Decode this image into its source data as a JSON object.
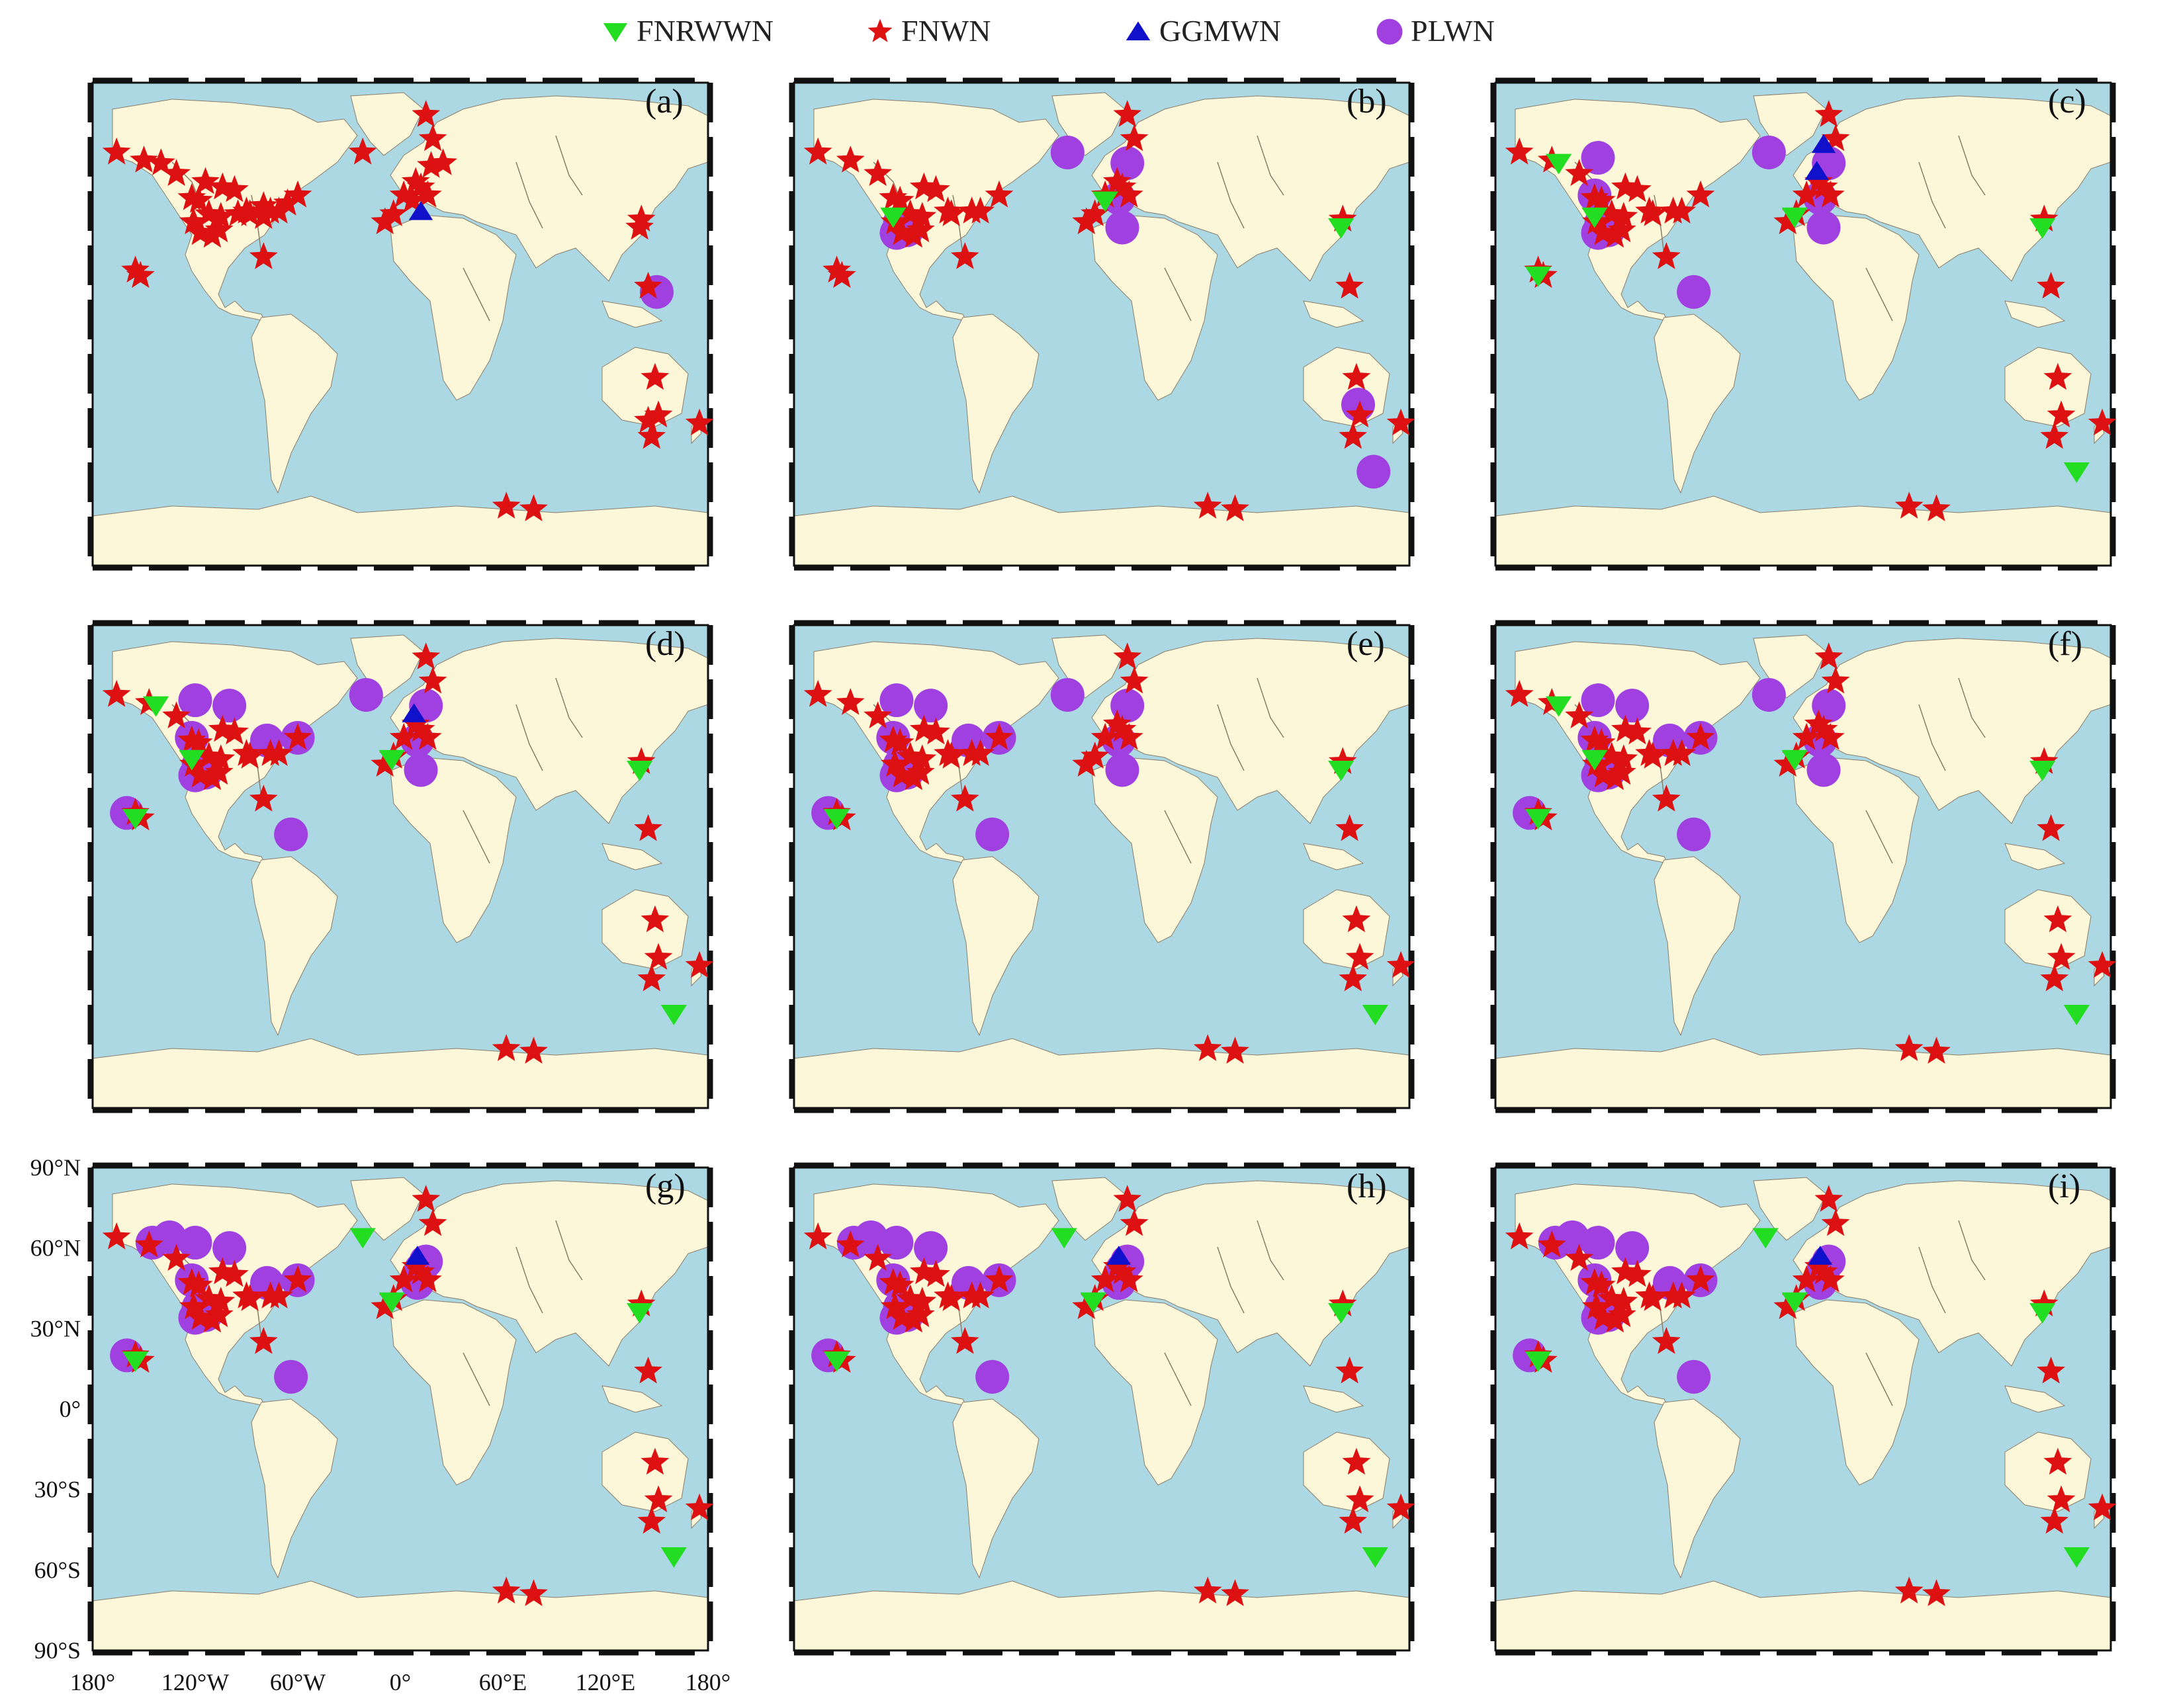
{
  "legend": {
    "items": [
      {
        "label": "FNRWWN",
        "symbol": "triangle-down",
        "color": "#22dd22"
      },
      {
        "label": "FNWN",
        "symbol": "star",
        "color": "#dd1111"
      },
      {
        "label": "GGMWN",
        "symbol": "triangle-up",
        "color": "#1111cc"
      },
      {
        "label": "PLWN",
        "symbol": "circle",
        "color": "#a040e0"
      }
    ]
  },
  "colors": {
    "ocean": "#acd8e4",
    "land": "#fcf7d8",
    "frame": "#111111",
    "river": "#8a7d6a"
  },
  "axes": {
    "lat_labels": [
      "90°N",
      "60°N",
      "30°N",
      "0°",
      "30°S",
      "60°S",
      "90°S"
    ],
    "lat_values": [
      90,
      60,
      30,
      0,
      -30,
      -60,
      -90
    ],
    "lon_labels": [
      "180°",
      "120°W",
      "60°W",
      "0°",
      "60°E",
      "120°E",
      "180°"
    ],
    "lon_values": [
      -180,
      -120,
      -60,
      0,
      60,
      120,
      180
    ]
  },
  "panels": [
    {
      "label": "(a)"
    },
    {
      "label": "(b)"
    },
    {
      "label": "(c)"
    },
    {
      "label": "(d)"
    },
    {
      "label": "(e)"
    },
    {
      "label": "(f)"
    },
    {
      "label": "(g)"
    },
    {
      "label": "(h)"
    },
    {
      "label": "(i)"
    }
  ],
  "site_sets": {
    "fnwn_base": [
      [
        -155,
        20
      ],
      [
        -152,
        18
      ],
      [
        -166,
        64
      ],
      [
        -150,
        61
      ],
      [
        -140,
        60
      ],
      [
        -131,
        56
      ],
      [
        -122,
        47
      ],
      [
        -118,
        46
      ],
      [
        -121,
        38
      ],
      [
        -117,
        34
      ],
      [
        -110,
        33
      ],
      [
        -106,
        35
      ],
      [
        -112,
        41
      ],
      [
        -105,
        40
      ],
      [
        -95,
        41
      ],
      [
        -90,
        42
      ],
      [
        -88,
        41
      ],
      [
        -80,
        40
      ],
      [
        -76,
        42
      ],
      [
        -71,
        42
      ],
      [
        -66,
        45
      ],
      [
        -80,
        25
      ],
      [
        -114,
        53
      ],
      [
        -104,
        51
      ],
      [
        -97,
        50
      ],
      [
        -80,
        44
      ],
      [
        -60,
        48
      ],
      [
        -22,
        64
      ],
      [
        -9,
        38
      ],
      [
        -4,
        41
      ],
      [
        2,
        48
      ],
      [
        7,
        46
      ],
      [
        9,
        53
      ],
      [
        12,
        51
      ],
      [
        16,
        48
      ],
      [
        18,
        59
      ],
      [
        25,
        60
      ],
      [
        15,
        78
      ],
      [
        19,
        69
      ],
      [
        141,
        39
      ],
      [
        140,
        36
      ],
      [
        145,
        14
      ],
      [
        149,
        -20
      ],
      [
        151,
        -34
      ],
      [
        147,
        -42
      ],
      [
        175,
        -37
      ],
      [
        62,
        -68
      ],
      [
        78,
        -69
      ],
      [
        145,
        -36
      ]
    ],
    "fnwn_later": [
      [
        -155,
        20
      ],
      [
        -152,
        18
      ],
      [
        -166,
        64
      ],
      [
        -147,
        61
      ],
      [
        -131,
        56
      ],
      [
        -122,
        47
      ],
      [
        -118,
        46
      ],
      [
        -121,
        38
      ],
      [
        -117,
        34
      ],
      [
        -110,
        33
      ],
      [
        -106,
        35
      ],
      [
        -112,
        41
      ],
      [
        -105,
        40
      ],
      [
        -90,
        42
      ],
      [
        -88,
        41
      ],
      [
        -76,
        42
      ],
      [
        -71,
        42
      ],
      [
        -80,
        25
      ],
      [
        -104,
        51
      ],
      [
        -97,
        50
      ],
      [
        -60,
        48
      ],
      [
        -9,
        38
      ],
      [
        -4,
        41
      ],
      [
        2,
        48
      ],
      [
        9,
        53
      ],
      [
        12,
        51
      ],
      [
        16,
        48
      ],
      [
        15,
        78
      ],
      [
        19,
        69
      ],
      [
        141,
        39
      ],
      [
        145,
        14
      ],
      [
        149,
        -20
      ],
      [
        151,
        -34
      ],
      [
        147,
        -42
      ],
      [
        175,
        -37
      ],
      [
        62,
        -68
      ],
      [
        78,
        -69
      ]
    ],
    "plwn_b": [
      [
        -118,
        38
      ],
      [
        -114,
        35
      ],
      [
        -120,
        34
      ],
      [
        -20,
        64
      ],
      [
        10,
        47
      ],
      [
        15,
        60
      ],
      [
        12,
        36
      ],
      [
        150,
        -30
      ],
      [
        159,
        -55
      ]
    ],
    "plwn_c": [
      [
        -118,
        38
      ],
      [
        -114,
        35
      ],
      [
        -120,
        34
      ],
      [
        -122,
        48
      ],
      [
        -120,
        62
      ],
      [
        -20,
        64
      ],
      [
        10,
        47
      ],
      [
        15,
        60
      ],
      [
        12,
        36
      ],
      [
        -64,
        12
      ]
    ],
    "plwn_def": [
      [
        -118,
        38
      ],
      [
        -114,
        35
      ],
      [
        -120,
        34
      ],
      [
        -122,
        48
      ],
      [
        -120,
        62
      ],
      [
        -100,
        60
      ],
      [
        -78,
        47
      ],
      [
        -60,
        48
      ],
      [
        -20,
        64
      ],
      [
        10,
        47
      ],
      [
        15,
        60
      ],
      [
        12,
        36
      ],
      [
        -64,
        12
      ],
      [
        -160,
        20
      ]
    ],
    "plwn_ghi": [
      [
        -118,
        38
      ],
      [
        -114,
        35
      ],
      [
        -120,
        34
      ],
      [
        -122,
        48
      ],
      [
        -120,
        62
      ],
      [
        -100,
        60
      ],
      [
        -78,
        47
      ],
      [
        -60,
        48
      ],
      [
        -135,
        64
      ],
      [
        -145,
        62
      ],
      [
        10,
        47
      ],
      [
        15,
        55
      ],
      [
        12,
        52
      ],
      [
        -64,
        12
      ],
      [
        -160,
        20
      ]
    ],
    "fnrwwn_b": [
      [
        -122,
        40
      ],
      [
        2,
        46
      ],
      [
        140,
        36
      ]
    ],
    "fnrwwn_c": [
      [
        -122,
        40
      ],
      [
        -143,
        60
      ],
      [
        -155,
        18
      ],
      [
        -5,
        40
      ],
      [
        140,
        36
      ],
      [
        160,
        -55
      ]
    ],
    "fnrwwn_d": [
      [
        -122,
        40
      ],
      [
        -143,
        60
      ],
      [
        -155,
        18
      ],
      [
        -5,
        40
      ],
      [
        140,
        36
      ],
      [
        160,
        -55
      ]
    ],
    "fnrwwn_e": [
      [
        -155,
        18
      ],
      [
        140,
        36
      ],
      [
        160,
        -55
      ]
    ],
    "fnrwwn_ghi": [
      [
        -155,
        18
      ],
      [
        -5,
        40
      ],
      [
        140,
        36
      ],
      [
        160,
        -55
      ],
      [
        -22,
        64
      ]
    ],
    "ggmwn_a": [
      [
        12,
        42
      ]
    ],
    "ggmwn_c": [
      [
        12,
        67
      ],
      [
        8,
        57
      ]
    ],
    "ggmwn_d": [
      [
        8,
        57
      ]
    ],
    "ggmwn_g": [
      [
        10,
        57
      ]
    ]
  },
  "panel_sites": [
    {
      "fnwn": "fnwn_base",
      "plwn": "none",
      "fnrwwn": "none",
      "ggmwn": "ggmwn_a",
      "extra_plwn": [
        [
          150,
          12
        ]
      ]
    },
    {
      "fnwn": "fnwn_later",
      "plwn": "plwn_b",
      "fnrwwn": "fnrwwn_b",
      "ggmwn": "none"
    },
    {
      "fnwn": "fnwn_later",
      "plwn": "plwn_c",
      "fnrwwn": "fnrwwn_c",
      "ggmwn": "ggmwn_c"
    },
    {
      "fnwn": "fnwn_later",
      "plwn": "plwn_def",
      "fnrwwn": "fnrwwn_d",
      "ggmwn": "ggmwn_d"
    },
    {
      "fnwn": "fnwn_later",
      "plwn": "plwn_def",
      "fnrwwn": "fnrwwn_e",
      "ggmwn": "none"
    },
    {
      "fnwn": "fnwn_later",
      "plwn": "plwn_def",
      "fnrwwn": "fnrwwn_c",
      "ggmwn": "none"
    },
    {
      "fnwn": "fnwn_later",
      "plwn": "plwn_ghi",
      "fnrwwn": "fnrwwn_ghi",
      "ggmwn": "ggmwn_g"
    },
    {
      "fnwn": "fnwn_later",
      "plwn": "plwn_ghi",
      "fnrwwn": "fnrwwn_ghi",
      "ggmwn": "ggmwn_g"
    },
    {
      "fnwn": "fnwn_later",
      "plwn": "plwn_ghi",
      "fnrwwn": "fnrwwn_ghi",
      "ggmwn": "ggmwn_g"
    }
  ]
}
